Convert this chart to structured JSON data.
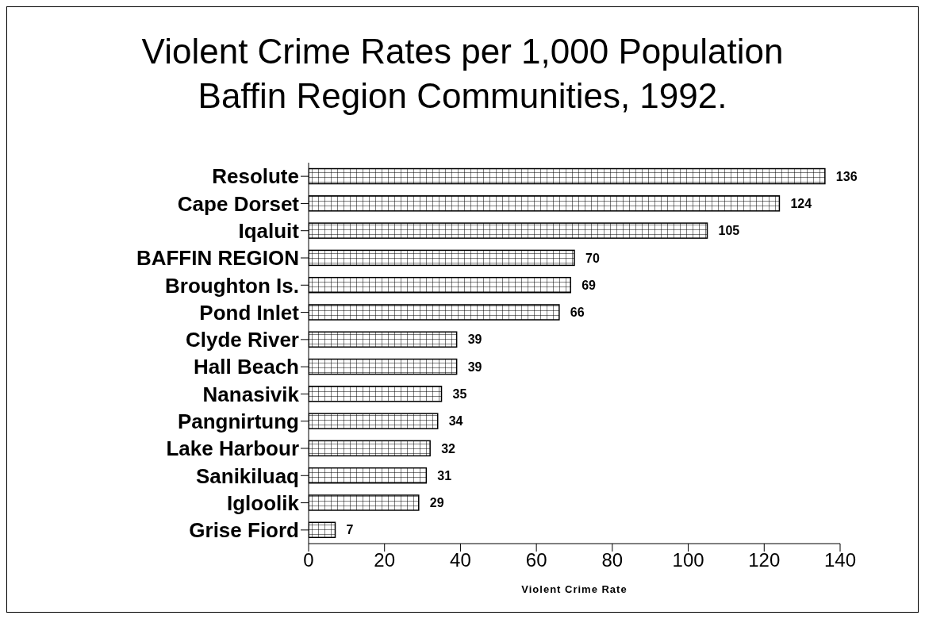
{
  "chart_data": {
    "type": "bar",
    "orientation": "horizontal",
    "title": "Violent Crime Rates per 1,000 Population",
    "subtitle": "Baffin Region Communities, 1992.",
    "xlabel": "Violent Crime Rate",
    "categories": [
      "Resolute",
      "Cape Dorset",
      "Iqaluit",
      "BAFFIN REGION",
      "Broughton Is.",
      "Pond Inlet",
      "Clyde River",
      "Hall Beach",
      "Nanasivik",
      "Pangnirtung",
      "Lake Harbour",
      "Sanikiluaq",
      "Igloolik",
      "Grise Fiord"
    ],
    "values": [
      136,
      124,
      105,
      70,
      69,
      66,
      39,
      39,
      35,
      34,
      32,
      31,
      29,
      7
    ],
    "color": "#000000",
    "xlim": [
      0,
      140
    ],
    "xticks": [
      0,
      20,
      40,
      60,
      80,
      100,
      120,
      140
    ],
    "data_labels": true,
    "grid": false,
    "legend": false
  }
}
